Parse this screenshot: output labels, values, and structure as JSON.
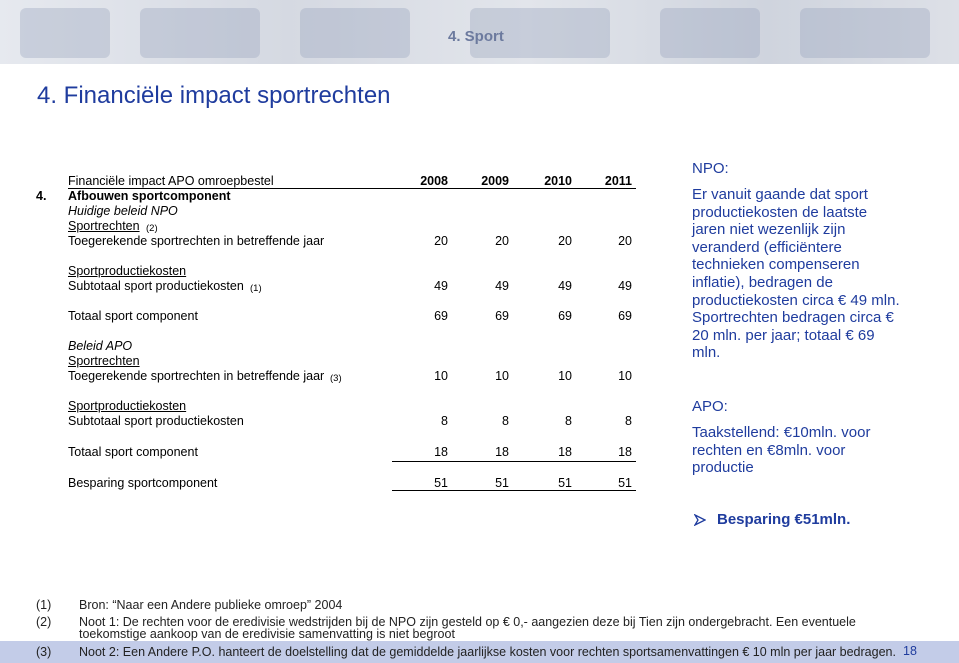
{
  "header": {
    "section": "4. Sport",
    "title": "4. Financiële impact sportrechten"
  },
  "table": {
    "caption": "Financiële impact APO omroepbestel",
    "years": [
      2008,
      2009,
      2010,
      2011
    ],
    "number": "4.",
    "rows": [
      {
        "label": "Afbouwen sportcomponent"
      },
      {
        "label": "Huidige beleid NPO"
      },
      {
        "label": "Sportrechten",
        "note": "(2)"
      },
      {
        "label": "Toegerekende sportrechten in betreffende jaar",
        "values": [
          20,
          20,
          20,
          20
        ]
      },
      {
        "label": "Sportproductiekosten"
      },
      {
        "label": "Subtotaal sport productiekosten",
        "note": "(1)",
        "values": [
          49,
          49,
          49,
          49
        ]
      },
      {
        "label": "Totaal sport component",
        "values": [
          69,
          69,
          69,
          69
        ]
      },
      {
        "label": "Beleid APO"
      },
      {
        "label": "Sportrechten"
      },
      {
        "label": "Toegerekende sportrechten in betreffende jaar",
        "note": "(3)",
        "values": [
          10,
          10,
          10,
          10
        ]
      },
      {
        "label": "Sportproductiekosten"
      },
      {
        "label": "Subtotaal sport productiekosten",
        "values": [
          8,
          8,
          8,
          8
        ]
      },
      {
        "label": "Totaal sport component",
        "values": [
          18,
          18,
          18,
          18
        ]
      },
      {
        "label": "Besparing sportcomponent",
        "values": [
          51,
          51,
          51,
          51
        ]
      }
    ]
  },
  "sidebar": {
    "npo_heading": "NPO:",
    "npo_text": "Er vanuit gaande dat sport productiekosten de laatste jaren niet wezenlijk zijn veranderd (efficiëntere technieken compenseren inflatie), bedragen de productiekosten circa € 49 mln. Sportrechten bedragen circa € 20 mln. per jaar; totaal € 69 mln.",
    "apo_heading": "APO:",
    "apo_text": "Taakstellend: €10mln. voor rechten en €8mln. voor productie",
    "conclusion": "Besparing €51mln."
  },
  "footnotes": [
    {
      "marker": "(1)",
      "text": "Bron: “Naar een Andere publieke omroep” 2004"
    },
    {
      "marker": "(2)",
      "text": "Noot 1: De rechten voor de eredivisie wedstrijden bij de NPO zijn gesteld op  € 0,- aangezien deze bij Tien zijn ondergebracht. Een eventuele toekomstige aankoop van de eredivisie samenvatting is niet begroot"
    },
    {
      "marker": "(3)",
      "text": "Noot 2: Een Andere P.O. hanteert de doelstelling dat de gemiddelde jaarlijkse kosten voor rechten sportsamenvattingen € 10 mln per jaar bedragen."
    }
  ],
  "page_number": "18"
}
